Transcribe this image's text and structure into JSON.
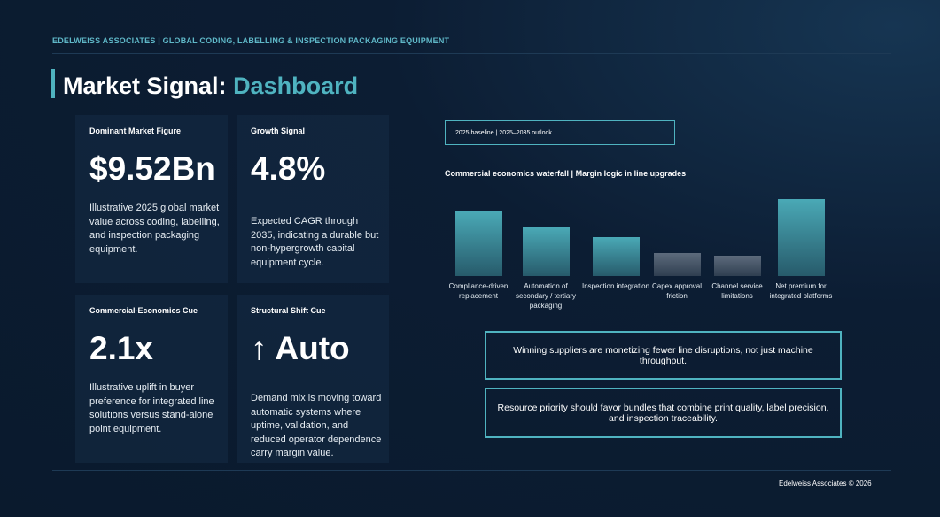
{
  "header": "EDELWEISS ASSOCIATES | GLOBAL CODING, LABELLING & INSPECTION PACKAGING EQUIPMENT",
  "title": {
    "prefix": "Market Signal:",
    "highlight": "Dashboard"
  },
  "cards": [
    {
      "label": "Dominant Market Figure",
      "figure": "$9.52Bn",
      "description": "Illustrative 2025 global market value across coding, labelling, and inspection packaging equipment."
    },
    {
      "label": "Growth Signal",
      "figure": "4.8%",
      "description": "Expected CAGR through 2035, indicating a durable but non-hypergrowth capital equipment cycle."
    },
    {
      "label": "Commercial-Economics Cue",
      "figure": "2.1x",
      "description": "Illustrative uplift in buyer preference for integrated line solutions versus stand-alone point equipment."
    },
    {
      "label": "Structural Shift Cue",
      "figure": "↑ Auto",
      "description": "Demand mix is moving toward automatic systems where uptime, validation, and reduced operator dependence carry margin value."
    }
  ],
  "chart_data": {
    "type": "bar",
    "annotation": "2025 baseline | 2025–2035 outlook",
    "title": "Commercial economics waterfall | Margin logic in line upgrades",
    "categories": [
      "Compliance-driven replacement",
      "Automation of secondary / tertiary packaging",
      "Inspection integration",
      "Capex approval friction",
      "Channel service limitations",
      "Net premium for integrated platforms"
    ],
    "values": [
      73,
      55,
      44,
      26,
      23,
      87
    ],
    "colors": [
      "#4aa9b6",
      "#4aa9b6",
      "#4aa9b6",
      "#5d6b7c",
      "#5d6b7c",
      "#4aa9b6"
    ]
  },
  "callouts": [
    "Winning suppliers are monetizing fewer line disruptions, not just machine throughput.",
    "Resource priority should favor bundles that combine print quality, label precision, and inspection traceability."
  ],
  "footer": "Edelweiss Associates © 2026"
}
